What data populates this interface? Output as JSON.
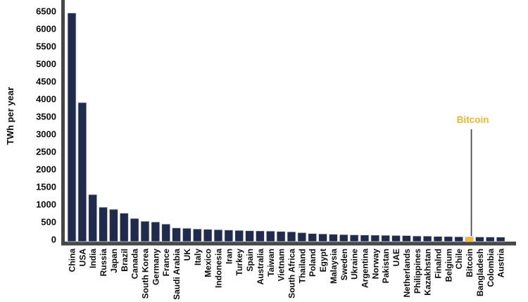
{
  "chart_data": {
    "type": "bar",
    "title": "",
    "xlabel": "",
    "ylabel": "TWh per year",
    "ylim": [
      0,
      6500
    ],
    "ytick_step": 500,
    "yticks": [
      0,
      500,
      1000,
      1500,
      2000,
      2500,
      3000,
      3500,
      4000,
      4500,
      5000,
      5500,
      6000,
      6500
    ],
    "grid": false,
    "legend_position": "none",
    "categories": [
      "China",
      "USA",
      "India",
      "Russia",
      "Japan",
      "Brazil",
      "Canada",
      "South Korea",
      "Germany",
      "France",
      "Saudi Arabia",
      "UK",
      "Italy",
      "Mexico",
      "Indonesia",
      "Iran",
      "Turkey",
      "Spain",
      "Australia",
      "Taiwan",
      "Vietnam",
      "South Africa",
      "Thailand",
      "Poland",
      "Egypt",
      "Malaysia",
      "Sweden",
      "Ukraine",
      "Argentina",
      "Norway",
      "Pakistan",
      "UAE",
      "Netherlands",
      "Philippines",
      "Kazakhstan",
      "Finalnd",
      "Belgium",
      "Chile",
      "Bitcoin",
      "Bangladesh",
      "Colombia",
      "Austria"
    ],
    "values": [
      6450,
      3900,
      1280,
      920,
      860,
      750,
      600,
      520,
      500,
      440,
      330,
      320,
      300,
      290,
      280,
      270,
      260,
      250,
      245,
      240,
      230,
      220,
      195,
      170,
      160,
      150,
      140,
      132,
      128,
      125,
      120,
      115,
      112,
      100,
      98,
      88,
      85,
      78,
      77,
      72,
      70,
      68
    ],
    "highlight": {
      "category": "Bitcoin",
      "index": 38,
      "color": "#F2B632"
    },
    "annotation": {
      "text": "Bitcoin",
      "color": "#F2B431"
    },
    "colors": {
      "bar": "#1F2A4C",
      "bar_edge": "#D7DBE4",
      "axis": "#474747",
      "annotation_line": "#4D4D4D",
      "text": "#0B0B0B",
      "background": "#FFFFFF"
    }
  }
}
